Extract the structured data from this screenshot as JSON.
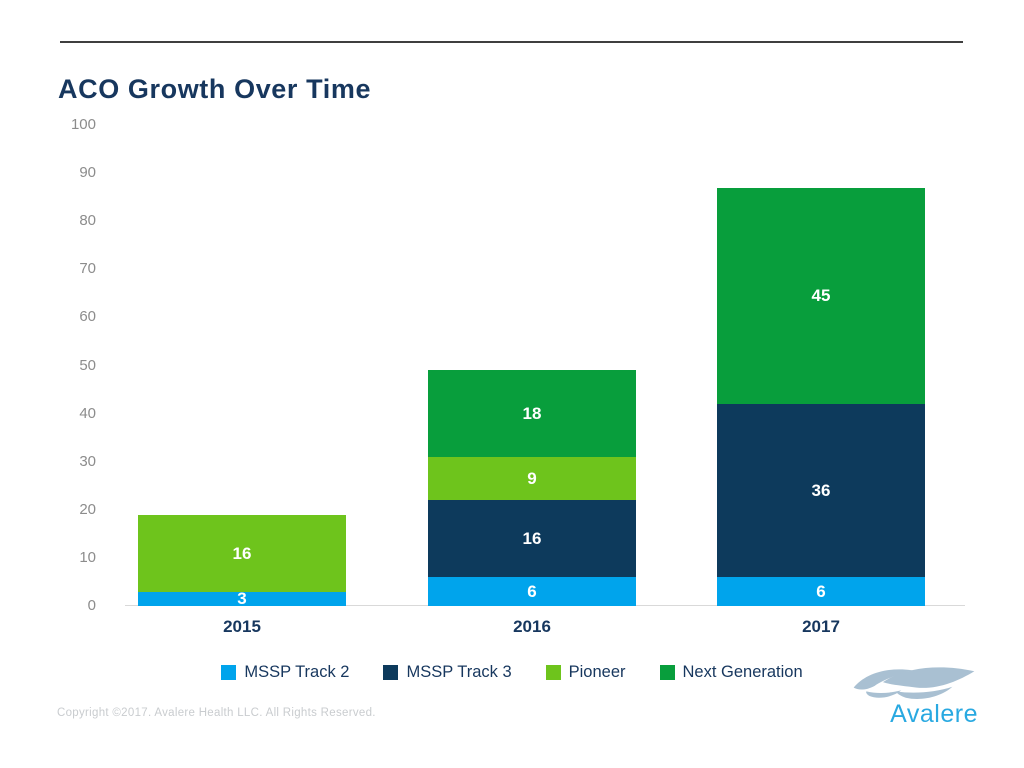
{
  "header": {
    "title": "ACO Growth Over Time"
  },
  "chart_data": {
    "type": "bar",
    "stacked": true,
    "title": "ACO Growth Over Time",
    "categories": [
      "2015",
      "2016",
      "2017"
    ],
    "series": [
      {
        "name": "MSSP Track 2",
        "color": "#00a4ec",
        "values": [
          3,
          6,
          6
        ]
      },
      {
        "name": "MSSP Track 3",
        "color": "#0d3a5c",
        "values": [
          0,
          16,
          36
        ]
      },
      {
        "name": "Pioneer",
        "color": "#6ec41c",
        "values": [
          16,
          9,
          0
        ]
      },
      {
        "name": "Next Generation",
        "color": "#089e3c",
        "values": [
          0,
          18,
          45
        ]
      }
    ],
    "ylim": [
      0,
      100
    ],
    "yticks": [
      0,
      10,
      20,
      30,
      40,
      50,
      60,
      70,
      80,
      90,
      100
    ],
    "grid": false,
    "legend_position": "bottom",
    "value_label_color": "#ffffff"
  },
  "footer": {
    "copyright": "Copyright ©2017. Avalere Health LLC. All Rights Reserved.",
    "logo": {
      "text": "Avalere",
      "text_color": "#29a9e1",
      "swoosh_icon_color": "#a9c0d2"
    }
  },
  "colors": {
    "title": "#17375e",
    "axis_label": "#8c8c8c",
    "category_label": "#17375e",
    "baseline": "#d9d9d9",
    "top_rule": "#3f3f3f"
  }
}
